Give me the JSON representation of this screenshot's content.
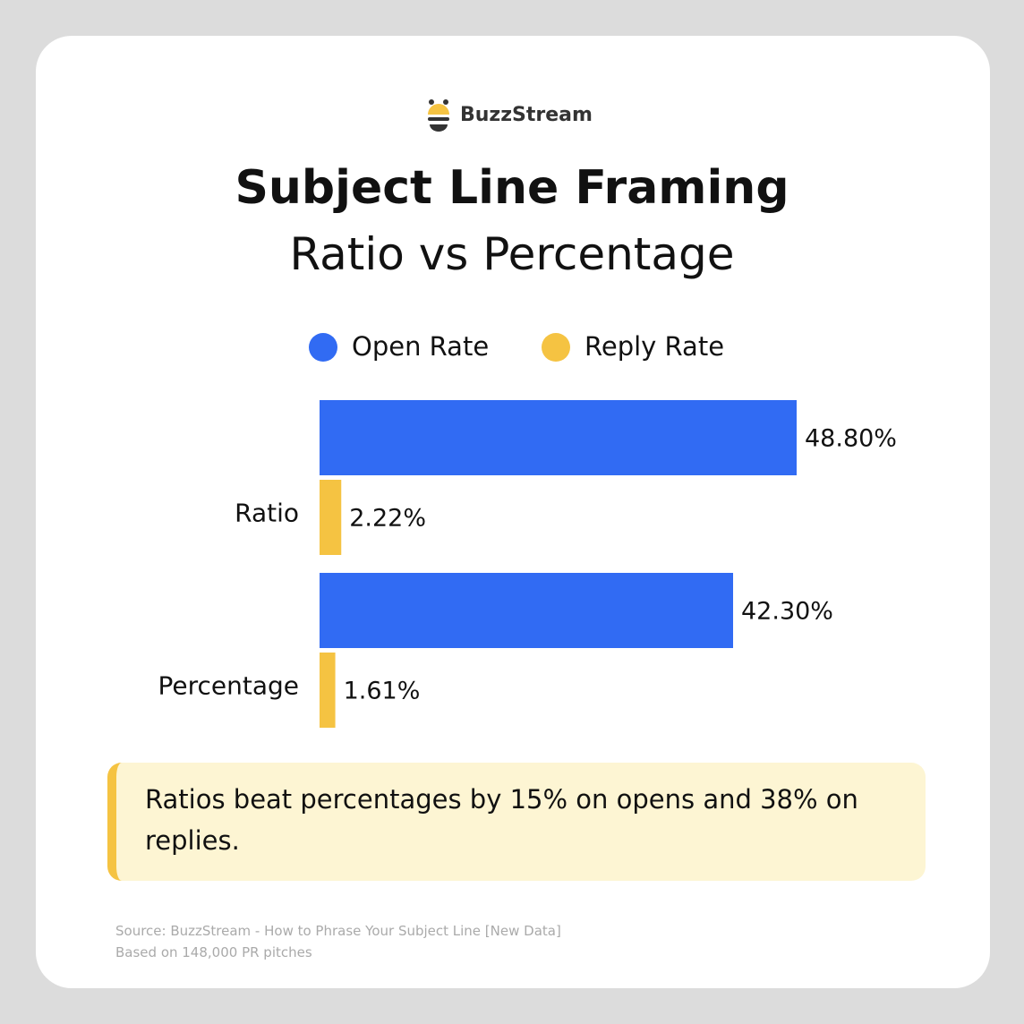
{
  "chart_data": {
    "type": "bar",
    "orientation": "horizontal",
    "brand": "BuzzStream",
    "title": "Subject Line Framing",
    "subtitle": "Ratio vs Percentage",
    "categories": [
      "Ratio",
      "Percentage"
    ],
    "series": [
      {
        "name": "Open Rate",
        "color": "#316bf3",
        "values": [
          48.8,
          42.3
        ],
        "value_labels": [
          "48.80%",
          "42.30%"
        ]
      },
      {
        "name": "Reply Rate",
        "color": "#f5c342",
        "values": [
          2.22,
          1.61
        ],
        "value_labels": [
          "2.22%",
          "1.61%"
        ]
      }
    ],
    "legend": "top",
    "annotation": "Ratios beat percentages by 15% on opens and 38% on replies.",
    "source": "Source: BuzzStream - How to Phrase Your Subject Line [New Data]",
    "note": "Based on 148,000 PR pitches"
  }
}
